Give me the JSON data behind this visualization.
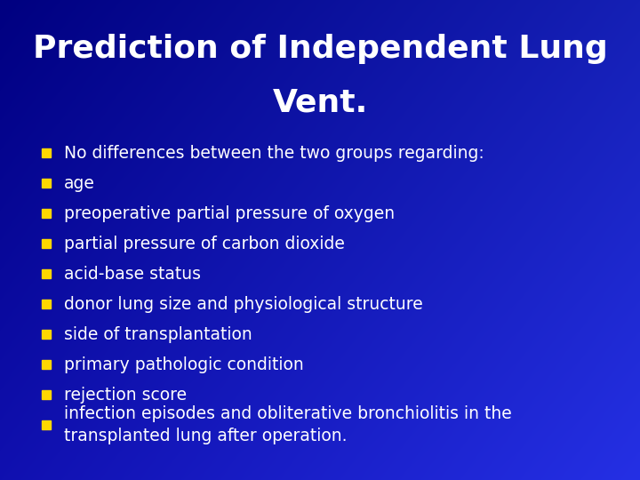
{
  "title_line1": "Prediction of Independent Lung",
  "title_line2": "Vent.",
  "title_color": "#FFFFFF",
  "title_fontsize": 26,
  "title_fontweight": "bold",
  "bg_color": "#1a35c8",
  "bullet_color": "#FFD700",
  "text_color": "#FFFFFF",
  "text_fontsize": 13.5,
  "bullet_items": [
    "No differences between the two groups regarding:",
    "age",
    "preoperative partial pressure of oxygen",
    "partial pressure of carbon dioxide",
    "acid-base status",
    "donor lung size and physiological structure",
    "side of transplantation",
    "primary pathologic condition",
    "rejection score",
    "infection episodes and obliterative bronchiolitis in the\ntransplanted lung after operation."
  ]
}
